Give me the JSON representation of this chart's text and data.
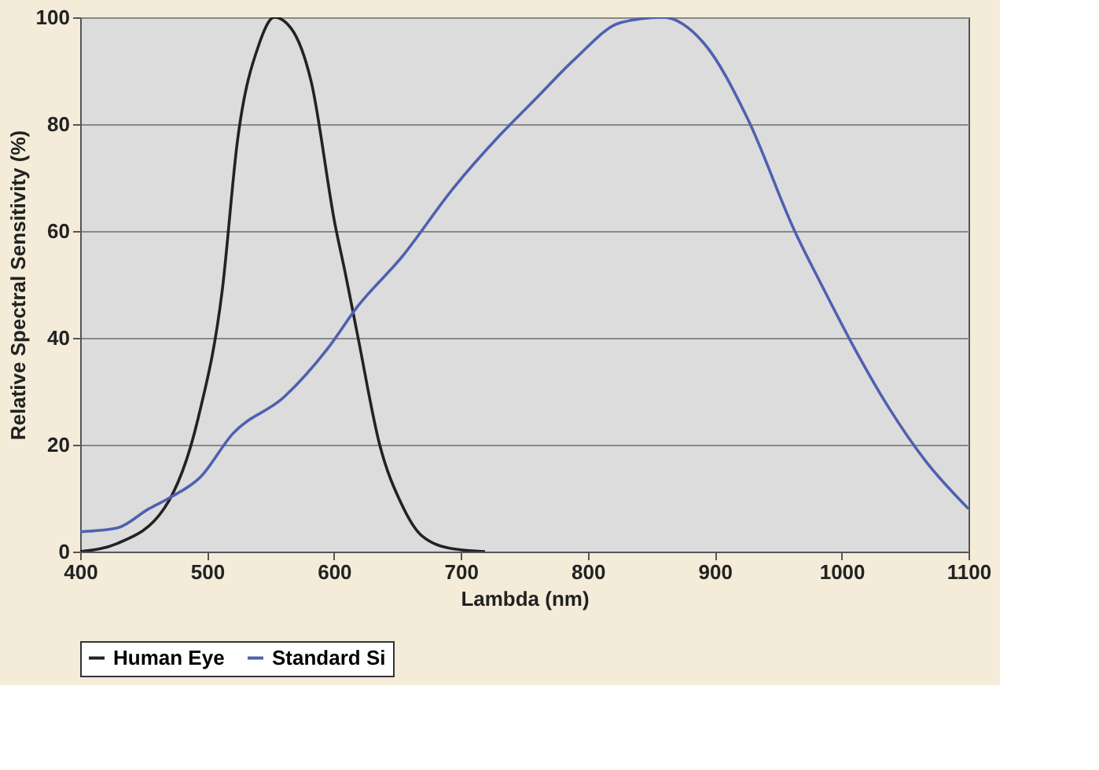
{
  "chart_data": {
    "type": "line",
    "xlabel": "Lambda (nm)",
    "ylabel": "Relative Spectral Sensitivity (%)",
    "xlim": [
      400,
      1100
    ],
    "xticks": [
      400,
      500,
      600,
      700,
      800,
      900,
      1000,
      1100
    ],
    "ylim": [
      0,
      100
    ],
    "yticks": [
      0,
      20,
      40,
      60,
      80,
      100
    ],
    "grid": "y",
    "legend": "bottom",
    "marker": "none",
    "line_style": "solid",
    "series": [
      {
        "name": "Human Eye",
        "color": "#222222",
        "x": [
          400,
          429,
          466,
          493,
          512,
          524,
          541,
          553,
          566,
          582,
          601,
          609,
          619,
          636,
          653,
          669,
          694,
          719
        ],
        "values": [
          0,
          1.5,
          8,
          25,
          49,
          77,
          95,
          100,
          98,
          88,
          61,
          52,
          40,
          20,
          9,
          3,
          0.5,
          0
        ]
      },
      {
        "name": "Standard Si",
        "color": "#5060b0",
        "x": [
          400,
          429,
          454,
          470,
          495,
          520,
          561,
          595,
          619,
          653,
          694,
          731,
          760,
          789,
          826,
          859,
          892,
          926,
          963,
          984,
          1008,
          1037,
          1066,
          1100
        ],
        "values": [
          3.7,
          4.4,
          8,
          10,
          14,
          22,
          29,
          38,
          46,
          55,
          68,
          78,
          85,
          92,
          99,
          100,
          95,
          81,
          60,
          50,
          39,
          27,
          17,
          8
        ]
      }
    ]
  }
}
